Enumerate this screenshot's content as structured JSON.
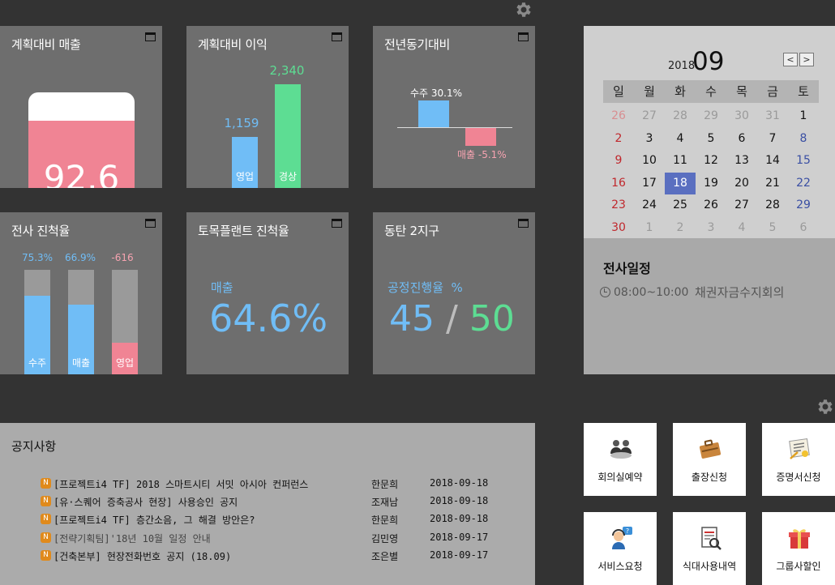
{
  "colors": {
    "pink": "#f08494",
    "blue": "#70bdf6",
    "green": "#5ddd93",
    "tile": "#6e6e6e"
  },
  "icons": {
    "settings_top": "gear-icon",
    "settings_bottom": "gear-icon"
  },
  "tiles": {
    "plan_sales": {
      "title": "계획대비 매출",
      "value": "92.6",
      "fill_percent": 92.6
    },
    "plan_profit": {
      "title": "계획대비 이익",
      "bars": [
        {
          "label": "영업",
          "value": "1,159",
          "amount": 1159
        },
        {
          "label": "경상",
          "value": "2,340",
          "amount": 2340
        }
      ]
    },
    "yoy": {
      "title": "전년동기대비",
      "bars": [
        {
          "label": "수주 30.1%",
          "amount": 30.1
        },
        {
          "label": "매출 -5.1%",
          "amount": -5.1
        }
      ]
    },
    "company_progress": {
      "title": "전사 진척율",
      "bars": [
        {
          "label": "수주",
          "value": "75.3%",
          "fill_percent": 75.3
        },
        {
          "label": "매출",
          "value": "66.9%",
          "fill_percent": 66.9
        },
        {
          "label": "영업",
          "value": "-616",
          "fill_percent": 30
        }
      ]
    },
    "civil_plant": {
      "title": "토목플랜트 진척율",
      "label": "매출",
      "value": "64.6%"
    },
    "dongtan": {
      "title": "동탄 2지구",
      "label": "공정진행율  %",
      "current": "45",
      "separator": "/",
      "total": "50"
    }
  },
  "calendar": {
    "year": "2018",
    "month": "09",
    "prev_label": "<",
    "next_label": ">",
    "weekdays": [
      "일",
      "월",
      "화",
      "수",
      "목",
      "금",
      "토"
    ],
    "weeks": [
      [
        "26",
        "27",
        "28",
        "29",
        "30",
        "31",
        "1"
      ],
      [
        "2",
        "3",
        "4",
        "5",
        "6",
        "7",
        "8"
      ],
      [
        "9",
        "10",
        "11",
        "12",
        "13",
        "14",
        "15"
      ],
      [
        "16",
        "17",
        "18",
        "19",
        "20",
        "21",
        "22"
      ],
      [
        "23",
        "24",
        "25",
        "26",
        "27",
        "28",
        "29"
      ],
      [
        "30",
        "1",
        "2",
        "3",
        "4",
        "5",
        "6"
      ]
    ],
    "today": "18",
    "schedule_title": "전사일정",
    "schedule": [
      {
        "time": "08:00~10:00",
        "title": "채권자금수지회의"
      }
    ]
  },
  "notice": {
    "title": "공지사항",
    "badge": "N",
    "items": [
      {
        "subject": "[프로젝트i4 TF] 2018 스마트시티 서밋 아시아 컨퍼런스",
        "author": "한문희",
        "date": "2018-09-18",
        "dim": false
      },
      {
        "subject": "[유·스퀘어 증축공사 현장] 사용승인 공지",
        "author": "조재남",
        "date": "2018-09-18",
        "dim": false
      },
      {
        "subject": "[프로젝트i4 TF] 층간소음, 그 해결 방안은?",
        "author": "한문희",
        "date": "2018-09-18",
        "dim": false
      },
      {
        "subject": "[전략기획팀]'18년 10월 일정 안내",
        "author": "김민영",
        "date": "2018-09-17",
        "dim": true
      },
      {
        "subject": "[건축본부] 현장전화번호 공지 (18.09)",
        "author": "조은별",
        "date": "2018-09-17",
        "dim": false
      }
    ]
  },
  "quick_links": [
    {
      "label": "회의실예약",
      "icon": "meeting-room-icon"
    },
    {
      "label": "출장신청",
      "icon": "briefcase-icon"
    },
    {
      "label": "증명서신청",
      "icon": "certificate-icon"
    },
    {
      "label": "서비스요청",
      "icon": "helpdesk-icon"
    },
    {
      "label": "식대사용내역",
      "icon": "receipt-icon"
    },
    {
      "label": "그룹사할인",
      "icon": "gift-icon"
    }
  ]
}
